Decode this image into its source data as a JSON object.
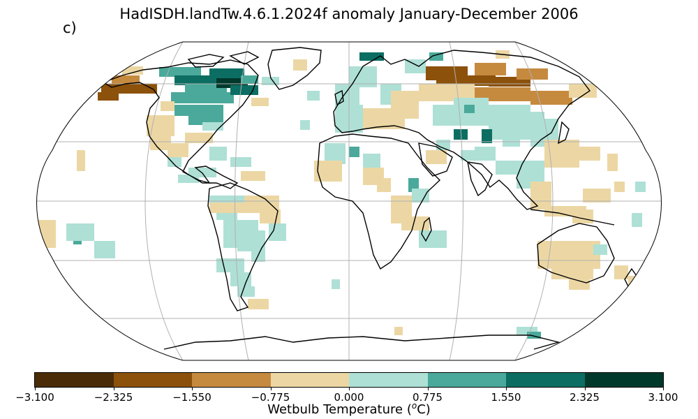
{
  "title": "HadISDH.landTw.4.6.1.2024f anomaly January-December 2006",
  "panel_label": "c)",
  "colorbar": {
    "label_text": "Wetbulb Temperature (",
    "label_sup": "o",
    "label_unit": "C)",
    "ticks": [
      "−3.100",
      "−2.325",
      "−1.550",
      "−0.775",
      "0.000",
      "0.775",
      "1.550",
      "2.325",
      "3.100"
    ],
    "colors": [
      "#4a2c08",
      "#8c510a",
      "#c68a3f",
      "#ecd7a4",
      "#aee0d6",
      "#4aa99a",
      "#0c6e63",
      "#00382c"
    ]
  },
  "map": {
    "projection": "robinson",
    "ocean_color": "#ffffff",
    "grid_color": "#b0b0b0",
    "coast_color": "#000000"
  }
}
